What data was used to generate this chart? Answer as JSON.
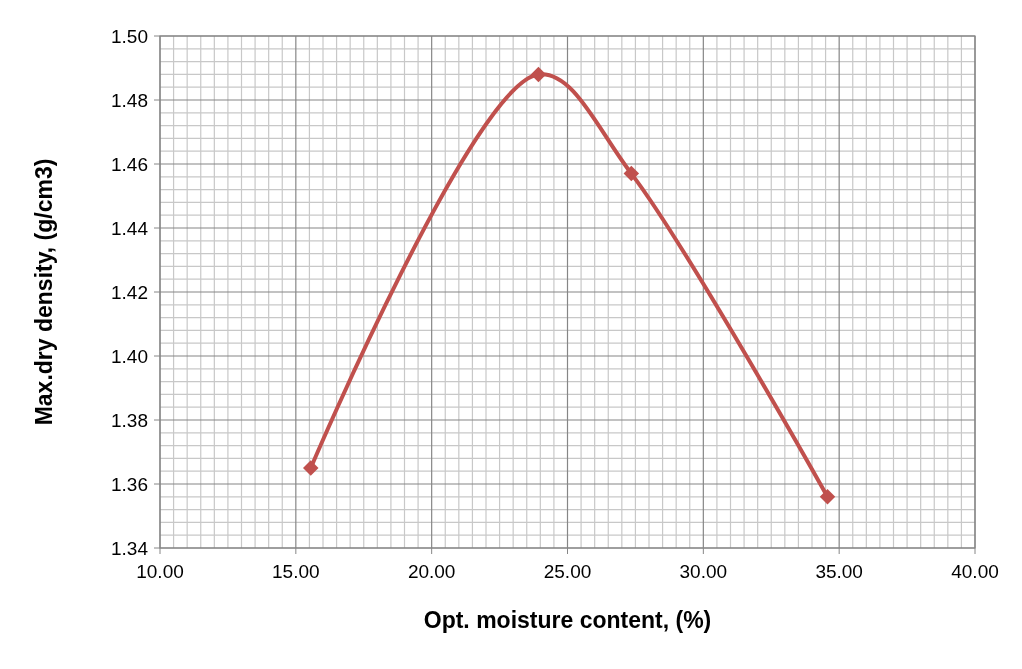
{
  "chart_data": {
    "type": "line",
    "xlabel": "Opt. moisture content, (%)",
    "ylabel": "Max.dry density, (g/cm3)",
    "x": [
      15.55,
      23.93,
      27.35,
      34.57
    ],
    "series": [
      {
        "color": "#c0504d",
        "values": [
          1.365,
          1.488,
          1.457,
          1.356
        ]
      }
    ],
    "xlim": [
      10,
      40
    ],
    "xticks": [
      {
        "value": 10,
        "label": "10.00"
      },
      {
        "value": 15,
        "label": "15.00"
      },
      {
        "value": 20,
        "label": "20.00"
      },
      {
        "value": 25,
        "label": "25.00"
      },
      {
        "value": 30,
        "label": "30.00"
      },
      {
        "value": 35,
        "label": "35.00"
      },
      {
        "value": 40,
        "label": "40.00"
      }
    ],
    "ylim": [
      1.34,
      1.5
    ],
    "yticks": [
      {
        "value": 1.34,
        "label": "1.34"
      },
      {
        "value": 1.36,
        "label": "1.36"
      },
      {
        "value": 1.38,
        "label": "1.38"
      },
      {
        "value": 1.4,
        "label": "1.40"
      },
      {
        "value": 1.42,
        "label": "1.42"
      },
      {
        "value": 1.44,
        "label": "1.44"
      },
      {
        "value": 1.46,
        "label": "1.46"
      },
      {
        "value": 1.48,
        "label": "1.48"
      },
      {
        "value": 1.5,
        "label": "1.50"
      }
    ],
    "grid": true,
    "marker": "diamond",
    "line_style": "solid"
  }
}
